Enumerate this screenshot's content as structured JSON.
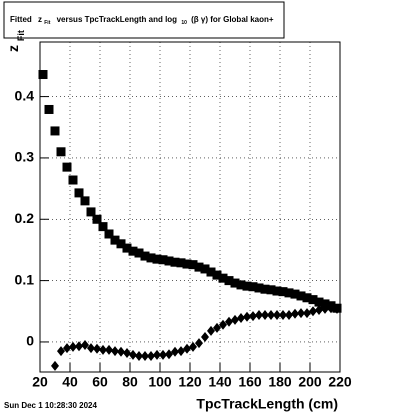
{
  "chart_data": {
    "type": "scatter",
    "title_parts": [
      "Fitted",
      "z",
      "Fit",
      "versus TpcTrackLength and log",
      "10",
      "(β γ) for Global kaon+"
    ],
    "y_label_parts": [
      "z",
      "Fit"
    ],
    "x_label": "TpcTrackLength (cm)",
    "timestamp": "Sun Dec  1 10:28:30 2024",
    "xlim": [
      20,
      220
    ],
    "xticks": [
      20,
      40,
      60,
      80,
      100,
      120,
      140,
      160,
      180,
      200,
      220
    ],
    "ylim": [
      -0.049,
      0.489
    ],
    "yticks": [
      0,
      0.1,
      0.2,
      0.3,
      0.4
    ],
    "grid": true,
    "series": [
      {
        "marker": "square",
        "color": "#000000",
        "x": [
          22,
          26,
          30,
          34,
          38,
          42,
          46,
          50,
          54,
          58,
          62,
          66,
          70,
          74,
          78,
          82,
          86,
          90,
          94,
          98,
          102,
          106,
          110,
          114,
          118,
          122,
          126,
          130,
          134,
          138,
          142,
          146,
          150,
          154,
          158,
          162,
          166,
          170,
          174,
          178,
          182,
          186,
          190,
          194,
          198,
          202,
          206,
          210,
          214,
          218
        ],
        "values": [
          0.436,
          0.379,
          0.344,
          0.31,
          0.285,
          0.264,
          0.243,
          0.23,
          0.212,
          0.2,
          0.188,
          0.176,
          0.166,
          0.16,
          0.153,
          0.148,
          0.145,
          0.14,
          0.137,
          0.135,
          0.134,
          0.132,
          0.13,
          0.129,
          0.127,
          0.126,
          0.122,
          0.119,
          0.114,
          0.109,
          0.104,
          0.1,
          0.096,
          0.093,
          0.091,
          0.09,
          0.088,
          0.086,
          0.085,
          0.083,
          0.082,
          0.08,
          0.078,
          0.075,
          0.072,
          0.069,
          0.065,
          0.062,
          0.059,
          0.055
        ]
      },
      {
        "marker": "diamond",
        "color": "#000000",
        "x": [
          30,
          34,
          38,
          42,
          46,
          50,
          54,
          58,
          62,
          66,
          70,
          74,
          78,
          82,
          86,
          90,
          94,
          98,
          102,
          106,
          110,
          114,
          118,
          122,
          126,
          130,
          134,
          138,
          142,
          146,
          150,
          154,
          158,
          162,
          166,
          170,
          174,
          178,
          182,
          186,
          190,
          194,
          198,
          202,
          206,
          210,
          214,
          218
        ],
        "values": [
          -0.039,
          -0.015,
          -0.01,
          -0.008,
          -0.007,
          -0.005,
          -0.01,
          -0.011,
          -0.013,
          -0.013,
          -0.015,
          -0.016,
          -0.018,
          -0.021,
          -0.023,
          -0.023,
          -0.023,
          -0.021,
          -0.021,
          -0.02,
          -0.016,
          -0.015,
          -0.011,
          -0.008,
          -0.002,
          0.008,
          0.018,
          0.023,
          0.028,
          0.033,
          0.036,
          0.039,
          0.041,
          0.042,
          0.044,
          0.044,
          0.044,
          0.044,
          0.044,
          0.044,
          0.046,
          0.047,
          0.047,
          0.05,
          0.052,
          0.054,
          0.055,
          0.054
        ]
      }
    ]
  }
}
